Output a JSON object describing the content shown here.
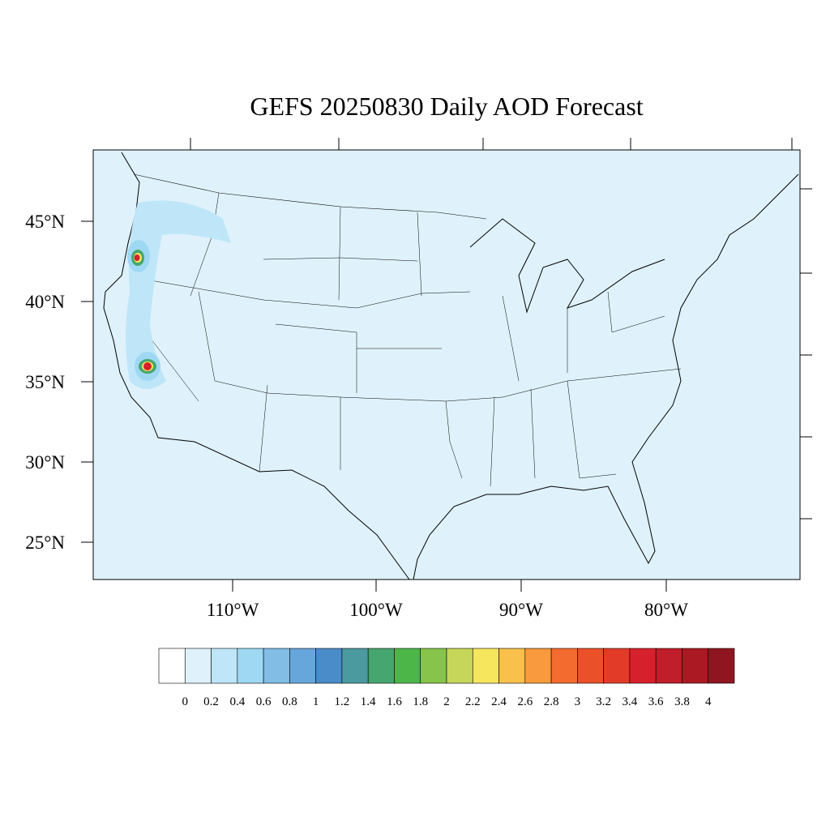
{
  "title": "GEFS 20250830 Daily AOD Forecast",
  "lat_labels": [
    "45°N",
    "40°N",
    "35°N",
    "30°N",
    "25°N"
  ],
  "lon_labels": [
    "110°W",
    "100°W",
    "90°W",
    "80°W"
  ],
  "colorbar": {
    "levels": [
      0,
      0.2,
      0.4,
      0.6,
      0.8,
      1,
      1.2,
      1.4,
      1.6,
      1.8,
      2,
      2.2,
      2.4,
      2.6,
      2.8,
      3,
      3.2,
      3.4,
      3.6,
      3.8,
      4
    ],
    "colors": [
      "#ffffff",
      "#dff2fb",
      "#bfe6f8",
      "#9fd8f3",
      "#82bde6",
      "#66a6da",
      "#4a8bc9",
      "#4a9aa0",
      "#46a66f",
      "#4cb648",
      "#86c44c",
      "#c6d65a",
      "#f6e65e",
      "#f9c04b",
      "#f89a3d",
      "#f36b2e",
      "#eb5128",
      "#e23b28",
      "#d6202b",
      "#bf1e2a",
      "#ab1a22",
      "#8f1620"
    ]
  }
}
